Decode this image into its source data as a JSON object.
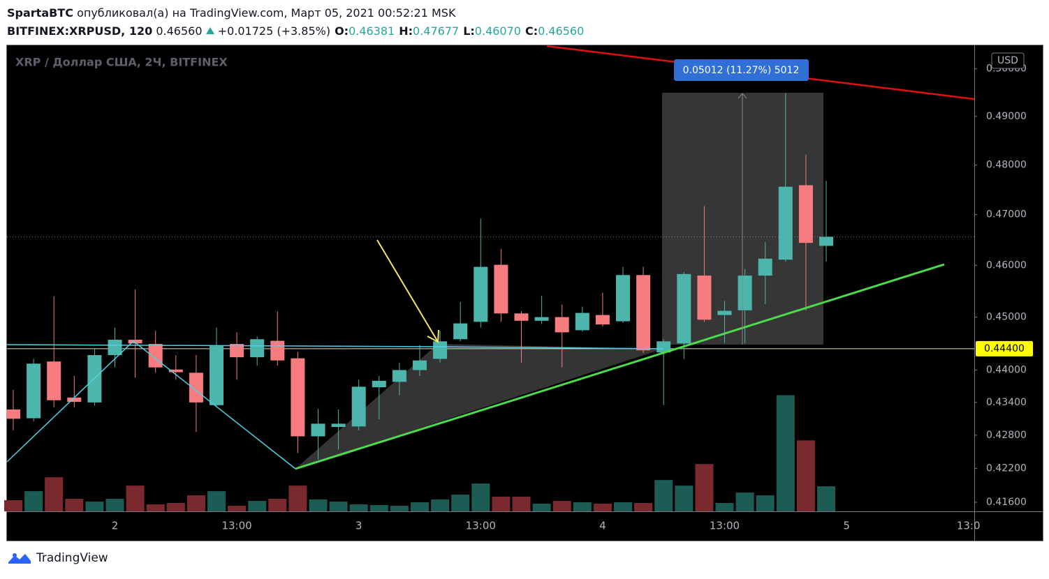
{
  "header": {
    "author": "SpartaBTC",
    "published": "опубликовал(а) на TradingView.com, Март 05, 2021 00:52:21 MSK",
    "symbol": "BITFINEX:XRPUSD, 120",
    "last": "0.46560",
    "change": "+0.01725 (+3.85%)",
    "ohlc": [
      {
        "label": "O:",
        "value": "0.46381"
      },
      {
        "label": "H:",
        "value": "0.47677"
      },
      {
        "label": "L:",
        "value": "0.46070"
      },
      {
        "label": "C:",
        "value": "0.46560"
      }
    ]
  },
  "brand": "TradingView",
  "chart_data": {
    "type": "candlestick",
    "title": "XRP / Доллар США, 2Ч, BITFINEX",
    "currency": "USD",
    "log": true,
    "ylim": [
      0.4144,
      0.505
    ],
    "yticks": [
      {
        "value": 0.5,
        "label": "0.50000"
      },
      {
        "value": 0.49,
        "label": "0.49000"
      },
      {
        "value": 0.48,
        "label": "0.48000"
      },
      {
        "value": 0.47,
        "label": "0.47000"
      },
      {
        "value": 0.46,
        "label": "0.46000"
      },
      {
        "value": 0.45,
        "label": "0.45000"
      },
      {
        "value": 0.44,
        "label": "0.44000"
      },
      {
        "value": 0.434,
        "label": "0.43400"
      },
      {
        "value": 0.428,
        "label": "0.42800"
      },
      {
        "value": 0.422,
        "label": "0.42200"
      },
      {
        "value": 0.416,
        "label": "0.41600"
      }
    ],
    "y2lim": [
      0,
      670
    ],
    "categories": [
      null,
      null,
      null,
      null,
      null,
      "2",
      null,
      null,
      null,
      null,
      null,
      "13:00",
      null,
      null,
      null,
      null,
      null,
      "3",
      null,
      null,
      null,
      null,
      null,
      "13:00",
      null,
      null,
      null,
      null,
      null,
      "4",
      null,
      null,
      null,
      null,
      null,
      "13:00",
      null,
      null,
      null,
      null,
      null,
      "5",
      null,
      null,
      null,
      null,
      null,
      "13:0"
    ],
    "open": [
      0.4327,
      0.4311,
      0.4416,
      0.4349,
      0.434,
      0.4428,
      0.4457,
      0.4449,
      0.4401,
      0.4395,
      0.4335,
      0.4449,
      0.4424,
      0.4455,
      0.4422,
      0.4278,
      0.4295,
      0.4296,
      0.4368,
      0.4378,
      0.44,
      0.4421,
      0.4458,
      0.4491,
      0.4601,
      0.4507,
      0.4493,
      0.45,
      0.4475,
      0.4504,
      0.4492,
      0.4581,
      0.4433,
      0.445,
      0.458,
      0.4504,
      0.4513,
      0.458,
      0.4611,
      0.4759,
      0.46381,
      null,
      null,
      null,
      null,
      null,
      null,
      null
    ],
    "high": [
      0.4363,
      0.4421,
      0.454,
      0.4389,
      0.4441,
      0.448,
      0.4553,
      0.4474,
      0.4428,
      0.4428,
      0.448,
      0.4471,
      0.4463,
      0.4511,
      0.4434,
      0.4328,
      0.4327,
      0.4382,
      0.4389,
      0.4414,
      0.4447,
      0.4474,
      0.4529,
      0.4692,
      0.4632,
      0.4511,
      0.4541,
      0.4524,
      0.452,
      0.4547,
      0.4597,
      0.4597,
      0.4458,
      0.4587,
      0.4717,
      0.4531,
      0.4593,
      0.4646,
      0.4949,
      0.4821,
      0.47677,
      null,
      null,
      null,
      null,
      null,
      null,
      null
    ],
    "low": [
      0.4289,
      0.4305,
      0.4331,
      0.4331,
      0.4334,
      0.4405,
      0.4386,
      0.4395,
      0.4382,
      0.4286,
      0.4331,
      0.4382,
      0.4408,
      0.4408,
      0.4248,
      0.4236,
      0.4254,
      0.4289,
      0.4309,
      0.4353,
      0.4389,
      0.4414,
      0.4454,
      0.448,
      0.4491,
      0.4414,
      0.4487,
      0.4405,
      0.4472,
      0.4482,
      0.4489,
      0.4432,
      0.4335,
      0.4421,
      0.4491,
      0.4451,
      0.445,
      0.4525,
      0.4607,
      0.4513,
      0.4607,
      null,
      null,
      null,
      null,
      null,
      null,
      null
    ],
    "close": [
      0.431,
      0.4412,
      0.4344,
      0.4341,
      0.4428,
      0.4457,
      0.445,
      0.4405,
      0.4396,
      0.434,
      0.4445,
      0.4424,
      0.4458,
      0.4418,
      0.4278,
      0.4301,
      0.4301,
      0.4369,
      0.438,
      0.44,
      0.4418,
      0.4454,
      0.4488,
      0.4597,
      0.4507,
      0.4493,
      0.45,
      0.4471,
      0.4508,
      0.4486,
      0.4581,
      0.4437,
      0.4454,
      0.4583,
      0.4495,
      0.4512,
      0.458,
      0.4613,
      0.4756,
      0.4644,
      0.4656,
      null,
      null,
      null,
      null,
      null,
      null,
      null
    ],
    "volume": [
      16,
      29,
      49,
      18,
      14,
      18,
      37,
      10,
      12,
      23,
      29,
      8,
      15,
      18,
      37,
      17,
      14,
      10,
      9,
      8,
      13,
      17,
      24,
      40,
      21,
      21,
      11,
      15,
      13,
      11,
      13,
      12,
      45,
      37,
      68,
      12,
      27,
      23,
      167,
      102,
      36,
      null,
      null,
      null,
      null,
      null,
      null,
      null
    ],
    "up_color": "#4db6ac",
    "down_color": "#f77c80",
    "volume_up_color": "#1d5b55",
    "volume_down_color": "#7a2a2e",
    "price_line": {
      "value": 0.444,
      "label": "0.44400"
    },
    "measure_label": "0.05012 (11.27%) 5012"
  }
}
